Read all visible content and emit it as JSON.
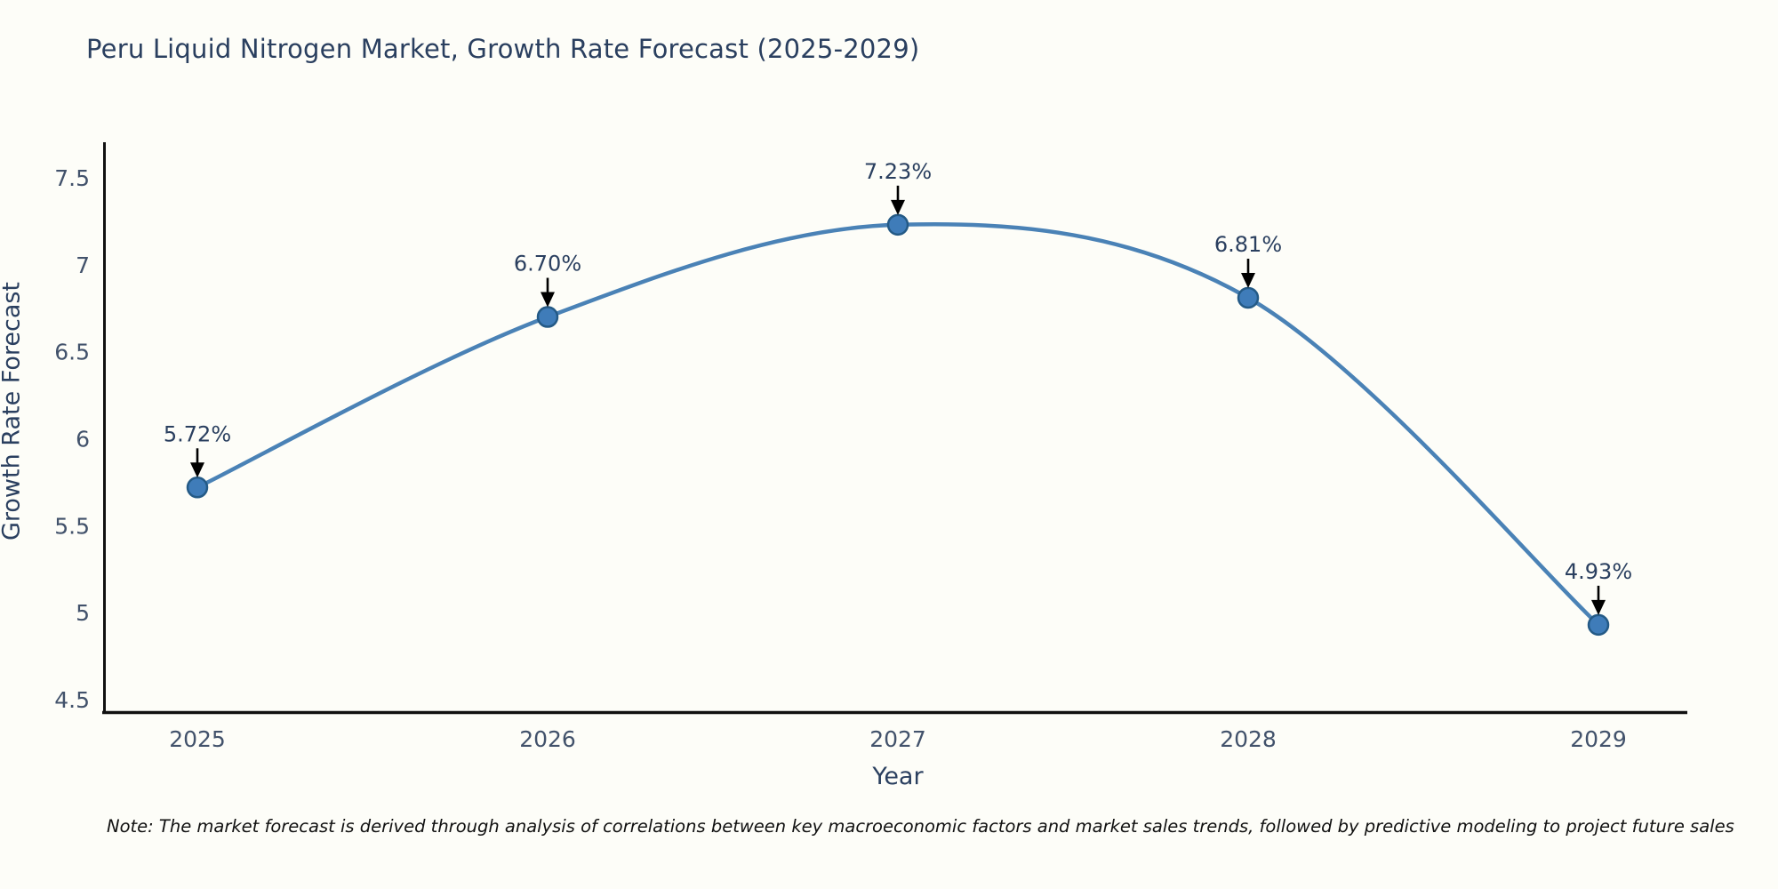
{
  "title": "Peru Liquid Nitrogen Market, Growth Rate Forecast (2025-2029)",
  "note": "Note: The market forecast is derived through analysis of correlations between key macroeconomic factors and market sales trends, followed by predictive modeling to project future sales",
  "chart_data": {
    "type": "line",
    "title": "Peru Liquid Nitrogen Market, Growth Rate Forecast (2025-2029)",
    "xlabel": "Year",
    "ylabel": "Growth Rate Forecast",
    "categories": [
      "2025",
      "2026",
      "2027",
      "2028",
      "2029"
    ],
    "series": [
      {
        "name": "Growth Rate Forecast",
        "values": [
          5.72,
          6.7,
          7.23,
          6.81,
          4.93
        ]
      }
    ],
    "point_labels": [
      "5.72%",
      "6.70%",
      "7.23%",
      "6.81%",
      "4.93%"
    ],
    "yticks": [
      4.5,
      5,
      5.5,
      6,
      6.5,
      7,
      7.5
    ],
    "ylim": [
      4.42,
      7.71
    ],
    "grid": false,
    "legend": false,
    "curve": "spline",
    "colors": {
      "line": "#4a82b6",
      "marker_fill": "#3f7cb9",
      "marker_stroke": "#245a86",
      "axis": "#111111",
      "tick_text": "#42526b",
      "title_text": "#2a3f5f",
      "annotation_text": "#2a3f5f",
      "annotation_arrow": "#000000"
    }
  }
}
